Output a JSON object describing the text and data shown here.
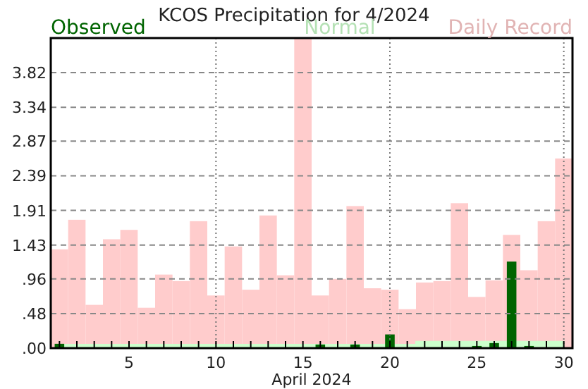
{
  "chart_data": {
    "type": "bar",
    "title": "KCOS Precipitation for 4/2024",
    "xlabel": "April 2024",
    "x": [
      1,
      2,
      3,
      4,
      5,
      6,
      7,
      8,
      9,
      10,
      11,
      12,
      13,
      14,
      15,
      16,
      17,
      18,
      19,
      20,
      21,
      22,
      23,
      24,
      25,
      26,
      27,
      28,
      29,
      30
    ],
    "xlim": [
      0.5,
      30.5
    ],
    "xticks": [
      {
        "value": 1,
        "label": null
      },
      {
        "value": 2,
        "label": null
      },
      {
        "value": 3,
        "label": null
      },
      {
        "value": 4,
        "label": null
      },
      5,
      {
        "value": 6,
        "label": null
      },
      {
        "value": 7,
        "label": null
      },
      {
        "value": 8,
        "label": null
      },
      {
        "value": 9,
        "label": null
      },
      10,
      {
        "value": 11,
        "label": null
      },
      {
        "value": 12,
        "label": null
      },
      {
        "value": 13,
        "label": null
      },
      {
        "value": 14,
        "label": null
      },
      15,
      {
        "value": 16,
        "label": null
      },
      {
        "value": 17,
        "label": null
      },
      {
        "value": 18,
        "label": null
      },
      {
        "value": 19,
        "label": null
      },
      20,
      {
        "value": 21,
        "label": null
      },
      {
        "value": 22,
        "label": null
      },
      {
        "value": 23,
        "label": null
      },
      {
        "value": 24,
        "label": null
      },
      25,
      {
        "value": 26,
        "label": null
      },
      {
        "value": 27,
        "label": null
      },
      {
        "value": 28,
        "label": null
      },
      {
        "value": 29,
        "label": null
      },
      30
    ],
    "ylim": [
      0,
      4.3
    ],
    "yticks": [
      {
        "value": 0,
        "label": ".00"
      },
      {
        "value": 0.48,
        "label": ".48"
      },
      {
        "value": 0.96,
        "label": ".96"
      },
      1.43,
      1.91,
      2.39,
      2.87,
      3.34,
      3.82
    ],
    "series": [
      {
        "name": "Daily Record",
        "color": "#ffcccc",
        "values": [
          1.37,
          1.78,
          0.6,
          1.51,
          1.64,
          0.56,
          1.02,
          0.93,
          1.76,
          0.73,
          1.41,
          0.81,
          1.84,
          1.01,
          4.3,
          0.73,
          0.96,
          1.97,
          0.83,
          0.81,
          0.54,
          0.91,
          0.93,
          2.01,
          0.71,
          0.94,
          1.57,
          1.08,
          1.76,
          2.63
        ]
      },
      {
        "name": "Normal",
        "type": "area",
        "color": "#ccffcc",
        "values": [
          0.05,
          0.05,
          0.05,
          0.05,
          0.05,
          0.05,
          0.05,
          0.05,
          0.05,
          0.05,
          0.05,
          0.05,
          0.05,
          0.05,
          0.05,
          0.05,
          0.05,
          0.05,
          0.05,
          0.05,
          0.05,
          0.09,
          0.09,
          0.09,
          0.09,
          0.09,
          null,
          0.09,
          0.09,
          0.09
        ]
      },
      {
        "name": "Observed",
        "color": "#006400",
        "values": [
          0.06,
          0,
          0,
          0,
          0,
          0,
          0,
          0,
          0,
          0,
          0,
          0,
          0,
          0,
          0,
          0.05,
          0,
          0.05,
          0,
          0.19,
          0,
          0,
          0,
          0,
          0.03,
          0.07,
          1.2,
          0.03,
          0,
          0
        ]
      }
    ],
    "grid": "y",
    "ref_lines": [
      {
        "axis": "x",
        "value": 10,
        "line_style": "dotted"
      },
      {
        "axis": "x",
        "value": 20,
        "line_style": "dotted"
      },
      {
        "axis": "x",
        "value": 30,
        "line_style": "dotted"
      }
    ],
    "legend": "top"
  }
}
